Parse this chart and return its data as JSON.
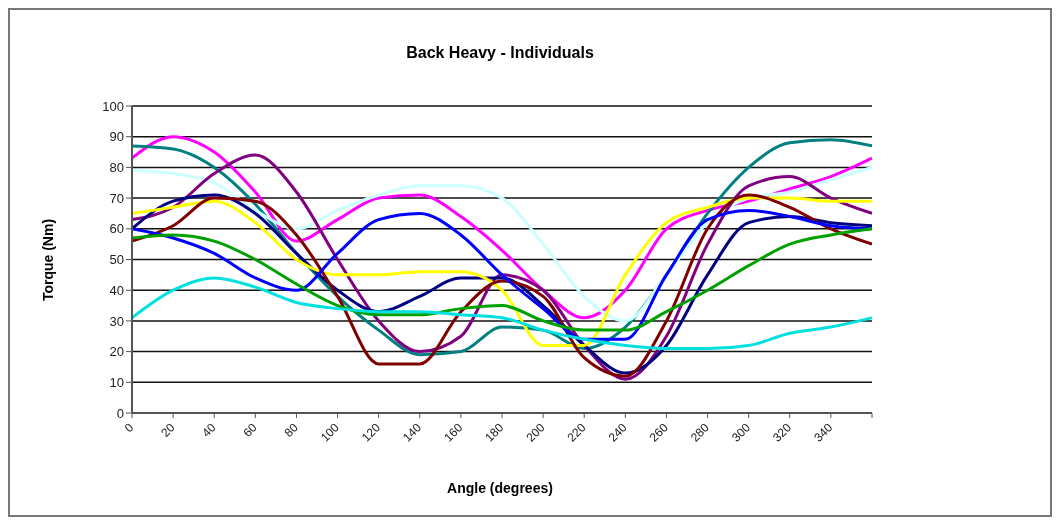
{
  "chart_data": {
    "type": "line",
    "title": "Back Heavy - Individuals",
    "xlabel": "Angle (degrees)",
    "ylabel": "Torque (Nm)",
    "x": [
      0,
      20,
      40,
      60,
      80,
      100,
      120,
      140,
      160,
      180,
      200,
      220,
      240,
      260,
      280,
      300,
      320,
      340,
      360
    ],
    "xlim": [
      0,
      360
    ],
    "xticks": [
      0,
      20,
      40,
      60,
      80,
      100,
      120,
      140,
      160,
      180,
      200,
      220,
      240,
      260,
      280,
      300,
      320,
      340,
      {
        "value": 360,
        "label": null
      }
    ],
    "ylim": [
      0,
      100
    ],
    "yticks": [
      0,
      10,
      20,
      30,
      40,
      50,
      60,
      70,
      80,
      90,
      100
    ],
    "grid": "y",
    "legend": false,
    "marker": "none",
    "line_style": "solid",
    "series": [
      {
        "color": "#ff00ff",
        "values": [
          83,
          90,
          85,
          72,
          56,
          63,
          70,
          71,
          64,
          53,
          40,
          31,
          40,
          60,
          66,
          69,
          73,
          77,
          83
        ]
      },
      {
        "color": "#008080",
        "values": [
          87,
          86,
          80,
          68,
          52,
          38,
          27,
          19,
          20,
          28,
          27,
          21,
          28,
          45,
          65,
          80,
          88,
          89,
          87
        ]
      },
      {
        "color": "#ccffff",
        "values": [
          79,
          78,
          75,
          66,
          60,
          66,
          71,
          74,
          74,
          70,
          55,
          38,
          30,
          45,
          62,
          70,
          72,
          76,
          80
        ]
      },
      {
        "color": "#800080",
        "values": [
          63,
          67,
          78,
          84,
          72,
          50,
          30,
          20,
          25,
          45,
          40,
          22,
          11,
          25,
          55,
          74,
          77,
          70,
          65
        ]
      },
      {
        "color": "#000080",
        "values": [
          60,
          69,
          71,
          65,
          52,
          40,
          33,
          38,
          44,
          44,
          35,
          22,
          13,
          22,
          45,
          62,
          64,
          62,
          61
        ]
      },
      {
        "color": "#ffff00",
        "values": [
          65,
          67,
          69,
          62,
          50,
          45,
          45,
          46,
          46,
          40,
          22,
          22,
          45,
          62,
          67,
          70,
          70,
          69,
          69
        ]
      },
      {
        "color": "#800000",
        "values": [
          56,
          61,
          70,
          69,
          58,
          38,
          16,
          16,
          33,
          43,
          38,
          18,
          12,
          30,
          60,
          71,
          67,
          60,
          55
        ]
      },
      {
        "color": "#0000ff",
        "values": [
          60,
          57,
          52,
          44,
          40,
          52,
          63,
          65,
          58,
          45,
          34,
          24,
          24,
          45,
          63,
          66,
          64,
          61,
          60
        ]
      },
      {
        "color": "#00a000",
        "values": [
          57,
          58,
          56,
          50,
          42,
          35,
          32,
          32,
          34,
          35,
          30,
          27,
          27,
          33,
          40,
          48,
          55,
          58,
          60
        ]
      },
      {
        "color": "#00e0e0",
        "values": [
          31,
          40,
          44,
          41,
          36,
          34,
          33,
          33,
          32,
          31,
          27,
          24,
          22,
          21,
          21,
          22,
          26,
          28,
          31
        ]
      }
    ]
  }
}
